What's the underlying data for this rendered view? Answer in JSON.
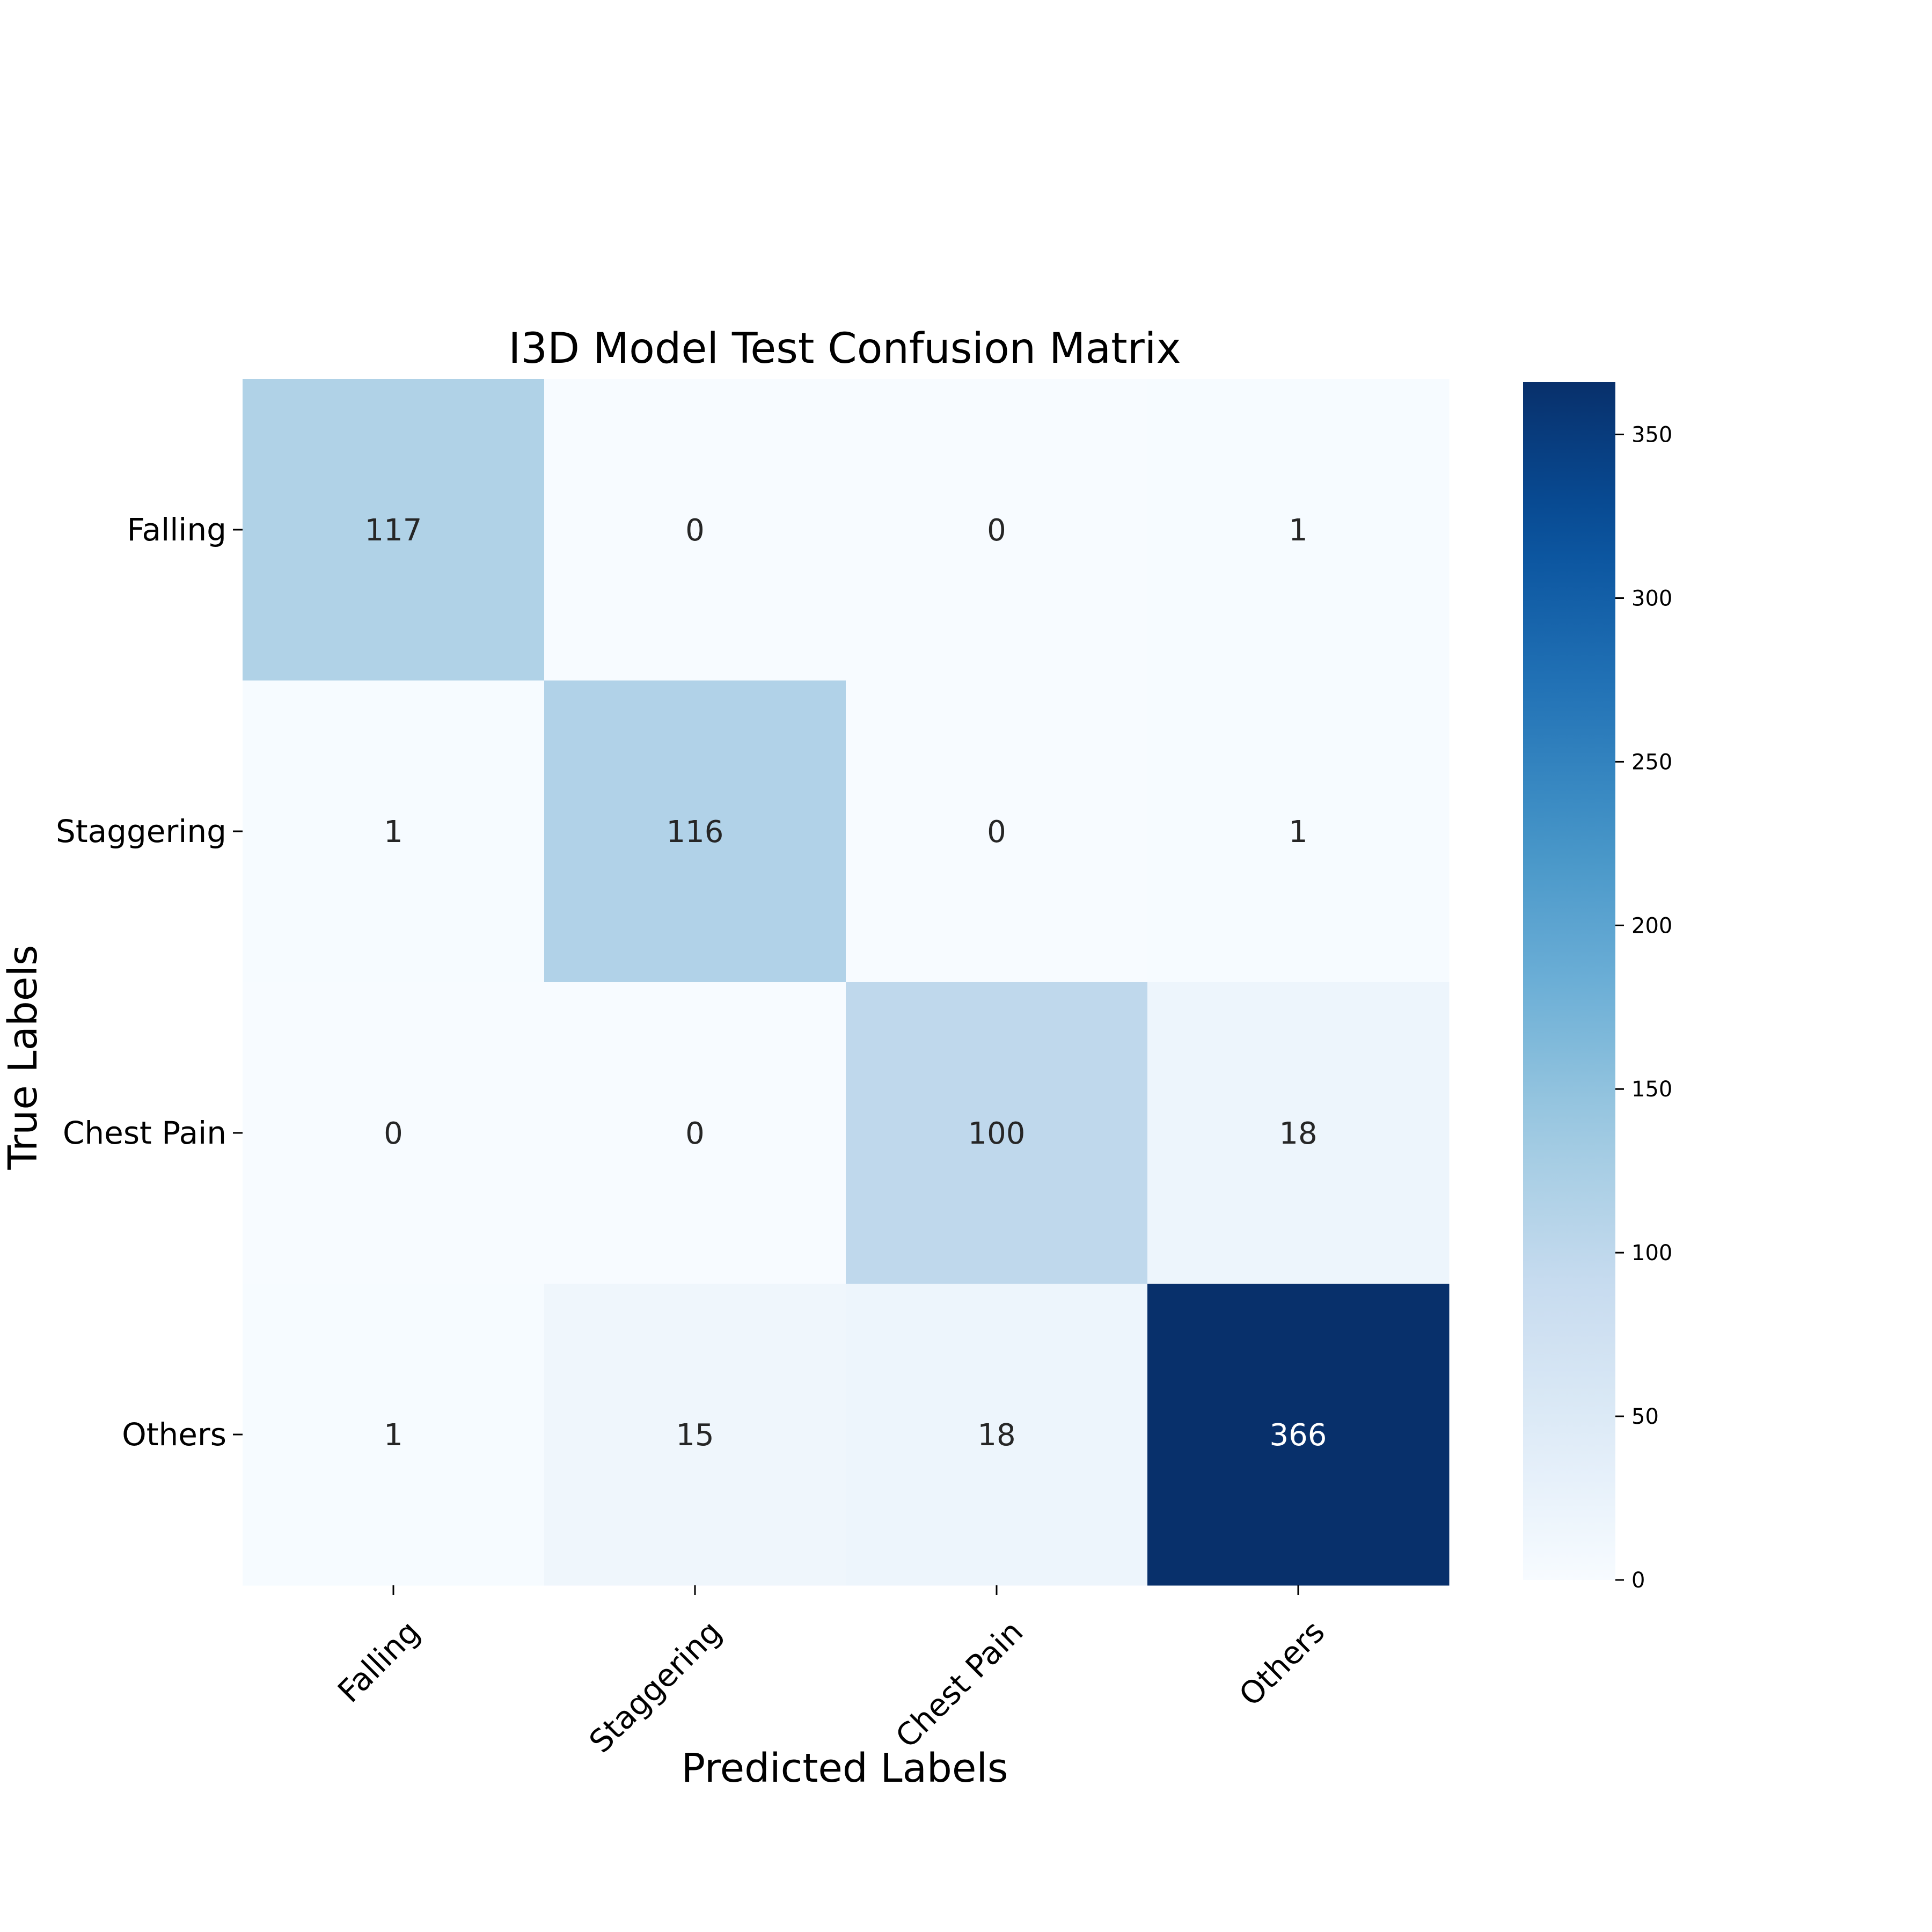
{
  "chart_data": {
    "type": "heatmap",
    "title": "I3D Model Test Confusion Matrix",
    "xlabel": "Predicted Labels",
    "ylabel": "True Labels",
    "x_categories": [
      "Falling",
      "Staggering",
      "Chest Pain",
      "Others"
    ],
    "y_categories": [
      "Falling",
      "Staggering",
      "Chest Pain",
      "Others"
    ],
    "values": [
      [
        117,
        0,
        0,
        1
      ],
      [
        1,
        116,
        0,
        1
      ],
      [
        0,
        0,
        100,
        18
      ],
      [
        1,
        15,
        18,
        366
      ]
    ],
    "colormap": "Blues",
    "colorbar": {
      "min": 0,
      "max": 366,
      "ticks": [
        0,
        50,
        100,
        150,
        200,
        250,
        300,
        350
      ]
    },
    "annotations": "cell counts",
    "grid": false
  }
}
